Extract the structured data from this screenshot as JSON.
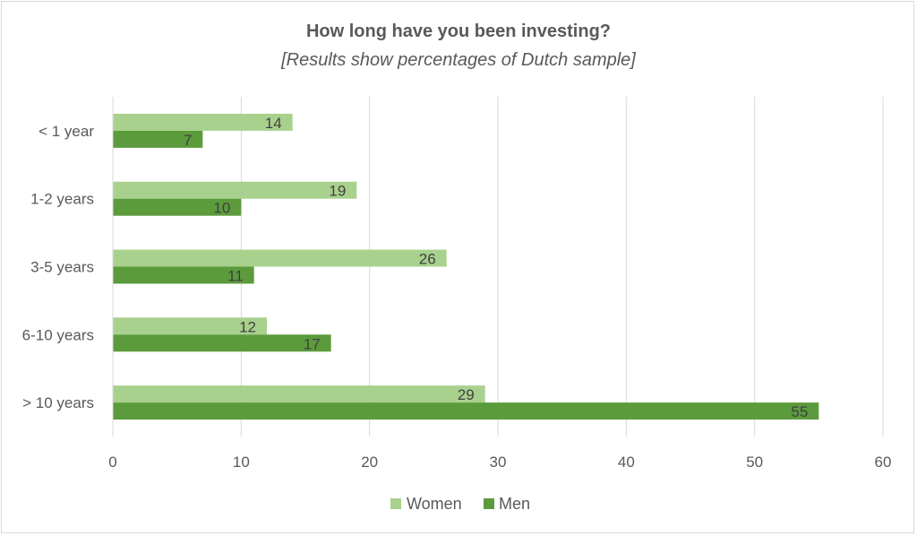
{
  "chart_data": {
    "type": "bar",
    "orientation": "horizontal",
    "title": "How long have you been investing?",
    "subtitle": "[Results show percentages of Dutch sample]",
    "categories": [
      "< 1 year",
      "1-2 years",
      "3-5 years",
      "6-10 years",
      "> 10 years"
    ],
    "series": [
      {
        "name": "Women",
        "values": [
          14,
          19,
          26,
          12,
          29
        ],
        "color": "#a9d18e"
      },
      {
        "name": "Men",
        "values": [
          7,
          10,
          11,
          17,
          55
        ],
        "color": "#5b9b3c"
      }
    ],
    "xlim": [
      0,
      60
    ],
    "xticks": [
      0,
      10,
      20,
      30,
      40,
      50,
      60
    ],
    "grid": "vertical",
    "legend": "bottom"
  }
}
